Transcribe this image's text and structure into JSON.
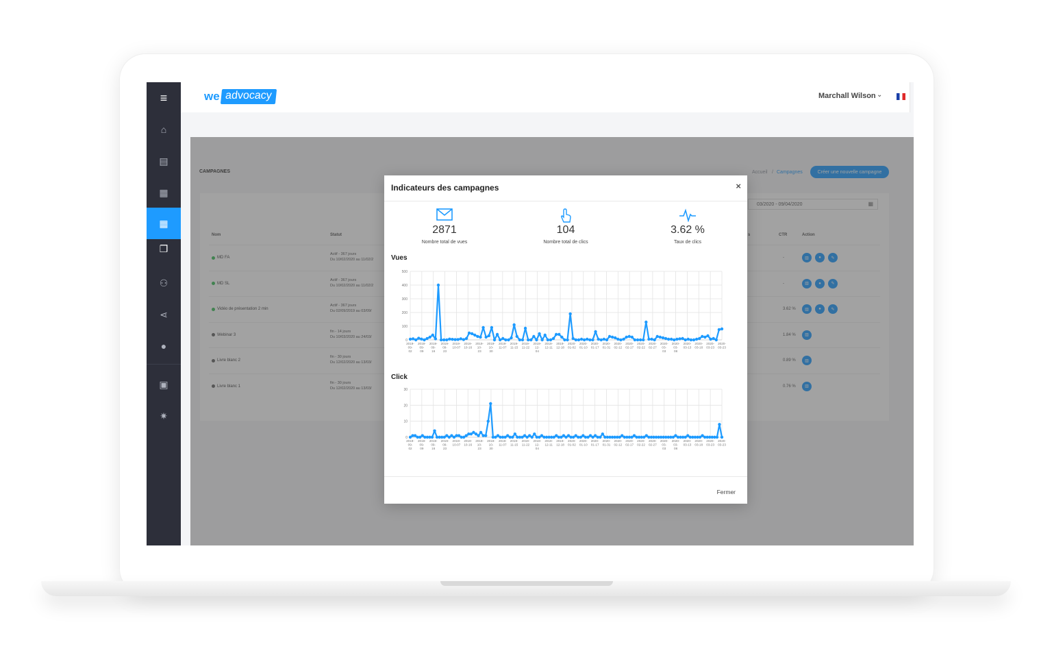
{
  "app": {
    "logo_we": "we",
    "logo_advocacy": "advocacy",
    "user_name": "Marchall Wilson"
  },
  "sidebar": {
    "items": [
      {
        "icon": "menu-icon",
        "glyph": "≡"
      },
      {
        "icon": "home-icon",
        "glyph": "⌂"
      },
      {
        "icon": "contact-card-icon",
        "glyph": "▤"
      },
      {
        "icon": "calendar-icon",
        "glyph": "▦"
      },
      {
        "icon": "calendar-active-icon",
        "glyph": "▦"
      },
      {
        "icon": "gallery-icon",
        "glyph": "❐"
      },
      {
        "icon": "network-icon",
        "glyph": "⚇"
      },
      {
        "icon": "share-icon",
        "glyph": "⋖"
      },
      {
        "icon": "user-icon",
        "glyph": "●"
      },
      {
        "icon": "images-icon",
        "glyph": "▣"
      },
      {
        "icon": "settings-icon",
        "glyph": "✷"
      }
    ]
  },
  "page": {
    "title": "CAMPAGNES",
    "breadcrumb": [
      "Accueil",
      "Campagnes"
    ],
    "breadcrumb_sep": "/",
    "create_button": "Créer une nouvelle campagne",
    "date_range": "03/2020 - 09/04/2020",
    "columns": [
      "Nom",
      "Statut",
      "s",
      "CTR",
      "Action"
    ],
    "rows": [
      {
        "name": "MD FA",
        "status1": "Actif - 367 jours",
        "status2": "Du 10/02/2020 au 11/02/2",
        "ctr": "-",
        "dot": "#3cbf5a",
        "actions": 3
      },
      {
        "name": "MD SL",
        "status1": "Actif - 367 jours",
        "status2": "Du 10/02/2020 au 11/02/2",
        "ctr": "-",
        "dot": "#3cbf5a",
        "actions": 3
      },
      {
        "name": "Vidéo de présentation 2 min",
        "status1": "Actif - 367 jours",
        "status2": "Du 02/09/2019 au 03/09/",
        "ctr": "3.62 %",
        "dot": "#3cbf5a",
        "actions": 3
      },
      {
        "name": "Webinar 3",
        "status1": "fin - 14 jours",
        "status2": "Du 10/03/2020 au 24/03/",
        "ctr": "1.84 %",
        "dot": "#666666",
        "actions": 1
      },
      {
        "name": "Livre blanc 2",
        "status1": "fin - 30 jours",
        "status2": "Du 12/02/2020 au 13/03/",
        "ctr": "0.89 %",
        "dot": "#666666",
        "actions": 1
      },
      {
        "name": "Livre blanc 1",
        "status1": "fin - 30 jours",
        "status2": "Du 12/02/2020 au 13/03/",
        "ctr": "0.76 %",
        "dot": "#666666",
        "actions": 1
      }
    ]
  },
  "modal": {
    "title": "Indicateurs des campagnes",
    "close": "×",
    "stats": [
      {
        "icon": "envelope-icon",
        "value": "2871",
        "label": "Nombre total de vues"
      },
      {
        "icon": "pointer-hand-icon",
        "value": "104",
        "label": "Nombre total de clics"
      },
      {
        "icon": "pulse-icon",
        "value": "3.62 %",
        "label": "Taux de clics"
      }
    ],
    "close_button": "Fermer"
  },
  "colors": {
    "accent": "#1e9bff",
    "sidebar": "#2d2f3a",
    "active_dot": "#3cbf5a"
  },
  "chart_data": [
    {
      "type": "line",
      "title": "Vues",
      "ylim": [
        0,
        500
      ],
      "yticks": [
        0,
        100,
        200,
        300,
        400,
        500
      ],
      "grid": true,
      "xtick_labels": [
        "2019-09-02",
        "2019-09-09",
        "2019-09-16",
        "2019-09-23",
        "2019-09-30",
        "2019-10-07",
        "2019-10-16",
        "2019-10-23",
        "2019-10-30",
        "2019-11-07",
        "2019-11-15",
        "2019-11-22",
        "2019-12-04",
        "2019-12-11",
        "2019-12-18",
        "2019-12-26",
        "2020-01-02",
        "2020-01-10",
        "2020-01-17",
        "2020-01-24",
        "2020-01-31",
        "2020-02-07",
        "2020-02-14",
        "2020-02-22",
        "2020-02-29",
        "2020-03-07",
        "2020-03-14",
        "2020-03-21"
      ],
      "xtick_display": [
        "2019-\n09-\n02",
        "2019-\n09-\n09",
        "2019-\n09-\n16",
        "2019-\n09-\n23",
        "2019-\n10-07",
        "2019-\n10-16",
        "2019-\n10-\n23",
        "2019-\n10-\n30",
        "2019-\n11-07",
        "2019-\n11-15",
        "2019-\n11-22",
        "2019-\n12-\n04",
        "2019-\n12-11",
        "2019-\n12-18",
        "2020-\n01-02",
        "2020-\n01-10",
        "2020-\n01-17",
        "2020-\n01-31",
        "2020-\n02-12",
        "2020-\n02-17",
        "2020-\n02-22",
        "2020-\n02-27",
        "2020-\n03-\n03",
        "2020-\n03-\n08",
        "2020-\n03-13",
        "2020-\n03-18",
        "2020-\n03-23",
        "2020-\n03-23"
      ],
      "values": [
        5,
        8,
        0,
        12,
        6,
        0,
        10,
        20,
        35,
        8,
        400,
        0,
        0,
        0,
        6,
        4,
        2,
        3,
        8,
        2,
        10,
        50,
        45,
        35,
        25,
        20,
        90,
        20,
        30,
        90,
        0,
        40,
        0,
        10,
        0,
        0,
        15,
        110,
        25,
        0,
        0,
        85,
        0,
        0,
        25,
        0,
        45,
        0,
        35,
        0,
        0,
        10,
        40,
        40,
        20,
        0,
        0,
        190,
        10,
        0,
        0,
        5,
        0,
        5,
        0,
        0,
        60,
        5,
        0,
        5,
        0,
        25,
        20,
        15,
        5,
        0,
        5,
        20,
        25,
        20,
        0,
        0,
        0,
        0,
        130,
        5,
        5,
        0,
        25,
        20,
        15,
        10,
        5,
        5,
        0,
        5,
        8,
        10,
        0,
        5,
        0,
        0,
        5,
        10,
        25,
        20,
        30,
        5,
        10,
        0,
        75,
        80
      ]
    },
    {
      "type": "line",
      "title": "Click",
      "ylim": [
        0,
        30
      ],
      "yticks": [
        0,
        10,
        20,
        30
      ],
      "grid": true,
      "xtick_display": [
        "2019-\n09-\n02",
        "2019-\n09-\n09",
        "2019-\n09-\n16",
        "2019-\n09-\n23",
        "2019-\n10-07",
        "2019-\n10-16",
        "2019-\n10-\n23",
        "2019-\n10-\n30",
        "2019-\n11-07",
        "2019-\n11-15",
        "2019-\n11-22",
        "2019-\n12-\n04",
        "2019-\n12-11",
        "2019-\n12-18",
        "2020-\n01-02",
        "2020-\n01-10",
        "2020-\n01-17",
        "2020-\n01-31",
        "2020-\n02-12",
        "2020-\n02-17",
        "2020-\n02-22",
        "2020-\n02-27",
        "2020-\n03-\n03",
        "2020-\n03-\n08",
        "2020-\n03-13",
        "2020-\n03-18",
        "2020-\n03-23",
        "2020-\n03-23"
      ],
      "values": [
        0,
        1,
        1,
        0,
        0,
        1,
        0,
        0,
        0,
        0,
        4,
        0,
        0,
        0,
        0,
        1,
        0,
        1,
        0,
        1,
        1,
        0,
        0,
        1,
        2,
        2,
        3,
        2,
        1,
        3,
        1,
        1,
        10,
        21,
        0,
        0,
        1,
        0,
        0,
        0,
        1,
        0,
        0,
        2,
        0,
        0,
        0,
        1,
        0,
        1,
        0,
        2,
        0,
        0,
        1,
        0,
        0,
        0,
        0,
        0,
        1,
        0,
        0,
        1,
        0,
        1,
        0,
        0,
        1,
        0,
        0,
        1,
        0,
        0,
        1,
        0,
        1,
        0,
        0,
        2,
        0,
        0,
        0,
        0,
        0,
        0,
        0,
        1,
        0,
        0,
        0,
        0,
        1,
        0,
        0,
        0,
        0,
        1,
        0,
        0,
        0,
        0,
        0,
        0,
        0,
        0,
        0,
        0,
        0,
        1,
        0,
        0,
        0,
        0,
        1,
        0,
        0,
        0,
        0,
        0,
        1,
        0,
        0,
        0,
        0,
        0,
        0,
        8,
        0
      ]
    }
  ]
}
